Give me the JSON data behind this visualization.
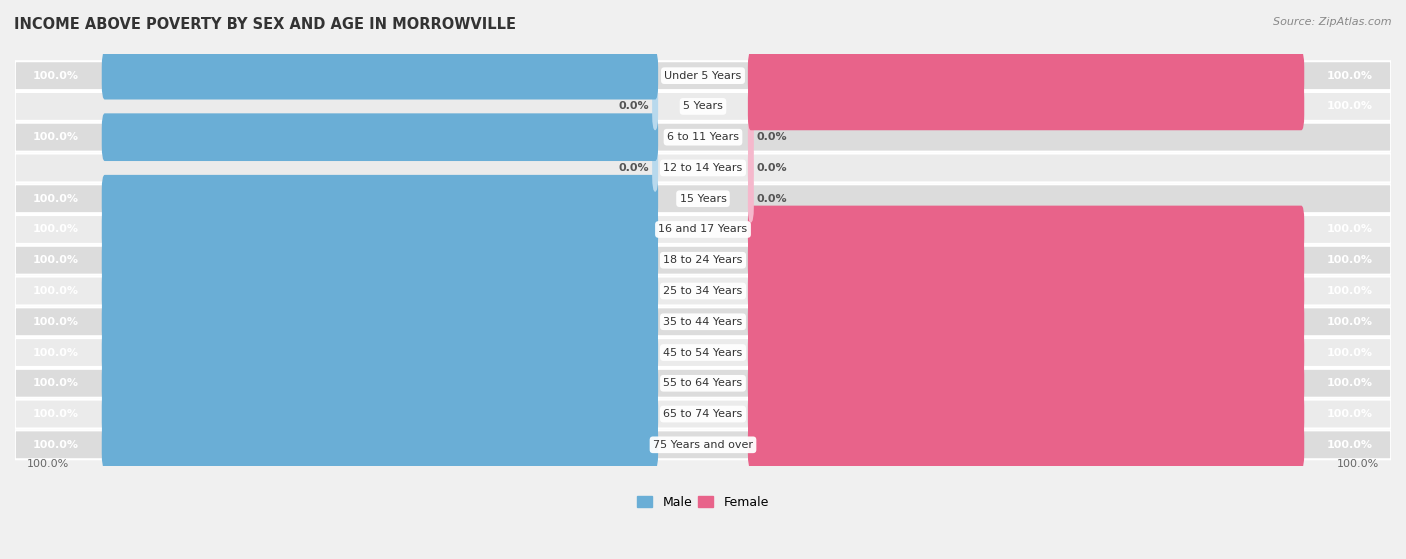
{
  "title": "INCOME ABOVE POVERTY BY SEX AND AGE IN MORROWVILLE",
  "source": "Source: ZipAtlas.com",
  "categories": [
    "Under 5 Years",
    "5 Years",
    "6 to 11 Years",
    "12 to 14 Years",
    "15 Years",
    "16 and 17 Years",
    "18 to 24 Years",
    "25 to 34 Years",
    "35 to 44 Years",
    "45 to 54 Years",
    "55 to 64 Years",
    "65 to 74 Years",
    "75 Years and over"
  ],
  "male": [
    100.0,
    0.0,
    100.0,
    0.0,
    100.0,
    100.0,
    100.0,
    100.0,
    100.0,
    100.0,
    100.0,
    100.0,
    100.0
  ],
  "female": [
    100.0,
    100.0,
    0.0,
    0.0,
    0.0,
    100.0,
    100.0,
    100.0,
    100.0,
    100.0,
    100.0,
    100.0,
    100.0
  ],
  "male_color_full": "#6aaed6",
  "male_color_zero": "#b8d9ed",
  "female_color_full": "#e8638a",
  "female_color_zero": "#f5b8cc",
  "bg_color": "#f0f0f0",
  "row_color_dark": "#dcdcdc",
  "row_color_light": "#ebebeb",
  "bar_height": 0.55,
  "title_fontsize": 10.5,
  "label_fontsize": 8,
  "cat_fontsize": 8,
  "source_fontsize": 8,
  "legend_fontsize": 9,
  "max_val": 100.0
}
